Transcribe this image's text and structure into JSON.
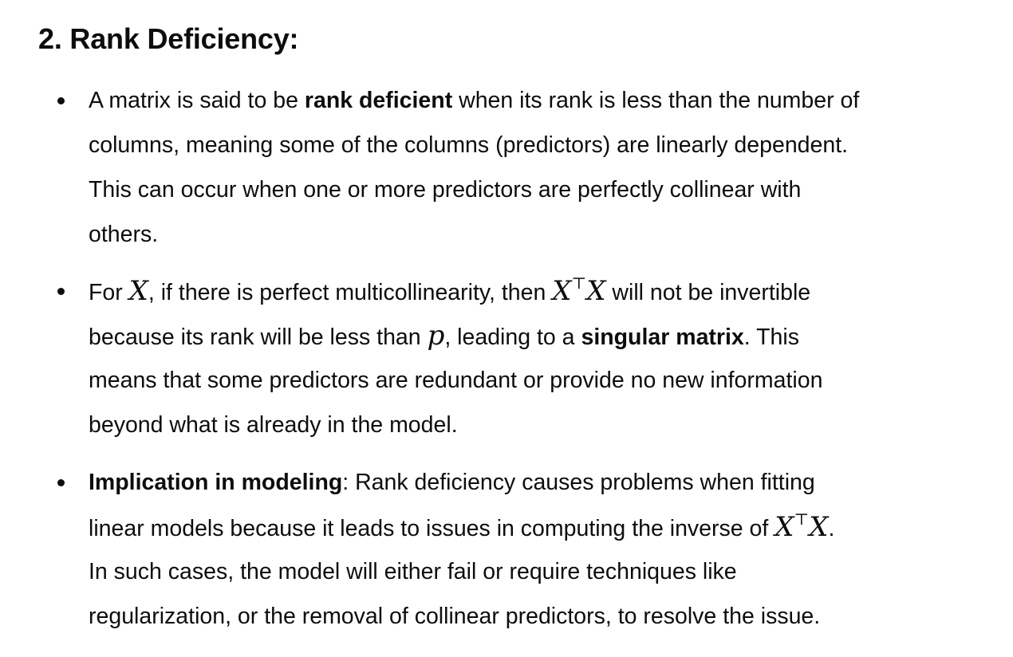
{
  "section": {
    "heading": "2. Rank Deficiency:"
  },
  "bullets": [
    {
      "lines": [
        {
          "pre": "A matrix is said to be ",
          "bold": "rank deficient",
          "post": " when its rank is less than the number of"
        },
        {
          "text": "columns, meaning some of the columns (predictors) are linearly dependent."
        },
        {
          "text": "This can occur when one or more predictors are perfectly collinear with"
        },
        {
          "text": "others."
        }
      ]
    },
    {
      "lines": [
        {
          "pre": "For ",
          "math1": "X",
          "mid": ", if there is perfect multicollinearity, then ",
          "math2_base": "X",
          "math2_sup": "⊤",
          "math2_end": "X",
          "post": " will not be invertible"
        },
        {
          "pre": "because its rank will be less than ",
          "math": "p",
          "mid": ", leading to a ",
          "bold": "singular matrix",
          "post": ". This"
        },
        {
          "text": "means that some predictors are redundant or provide no new information"
        },
        {
          "text": "beyond what is already in the model."
        }
      ]
    },
    {
      "lines": [
        {
          "bold": "Implication in modeling",
          "post": ": Rank deficiency causes problems when fitting"
        },
        {
          "pre": "linear models because it leads to issues in computing the inverse of ",
          "math_base": "X",
          "math_sup": "⊤",
          "math_end": "X",
          "post": "."
        },
        {
          "text": "In such cases, the model will either fail or require techniques like"
        },
        {
          "text": "regularization, or the removal of collinear predictors, to resolve the issue."
        }
      ]
    }
  ]
}
